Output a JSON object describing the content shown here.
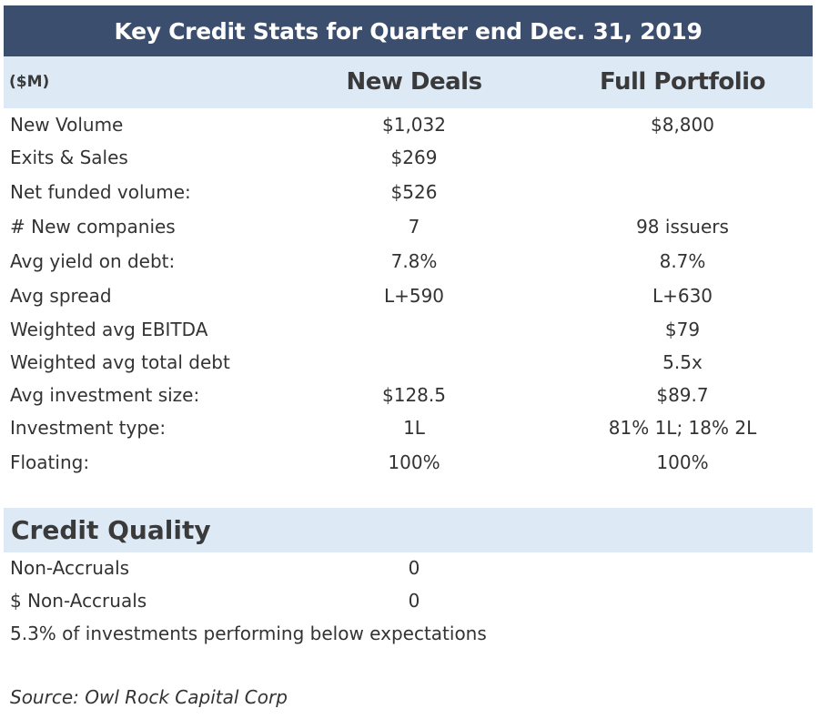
{
  "title": "Key Credit Stats for Quarter end Dec. 31, 2019",
  "header": {
    "unit": "($M)",
    "col1": "New Deals",
    "col2": "Full Portfolio"
  },
  "rows": [
    {
      "label": "New Volume",
      "new": "$1,032",
      "full": "$8,800"
    },
    {
      "label": "Exits & Sales",
      "new": "$269",
      "full": ""
    },
    {
      "label": "Net funded volume:",
      "new": "$526",
      "full": ""
    },
    {
      "label": "# New companies",
      "new": "7",
      "full": "98 issuers"
    },
    {
      "label": "Avg yield on debt:",
      "new": "7.8%",
      "full": "8.7%"
    },
    {
      "label": "Avg spread",
      "new": "L+590",
      "full": "L+630"
    },
    {
      "label": "Weighted avg EBITDA",
      "new": "",
      "full": "$79"
    },
    {
      "label": "Weighted avg total debt",
      "new": "",
      "full": "5.5x"
    },
    {
      "label": "Avg investment size:",
      "new": "$128.5",
      "full": "$89.7"
    },
    {
      "label": "Investment type:",
      "new": "1L",
      "full": "81% 1L; 18% 2L"
    },
    {
      "label": "Floating:",
      "new": "100%",
      "full": "100%"
    }
  ],
  "credit_quality": {
    "title": "Credit Quality",
    "rows": [
      {
        "label": "Non-Accruals",
        "new": "0"
      },
      {
        "label": "$ Non-Accruals",
        "new": "0"
      }
    ],
    "note": "5.3% of investments performing below expectations"
  },
  "source": "Source: Owl Rock Capital Corp"
}
